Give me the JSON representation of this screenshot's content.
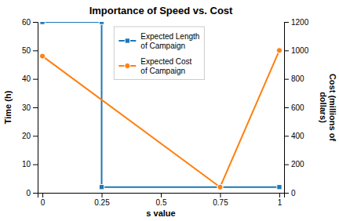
{
  "chart_data": {
    "type": "line",
    "title": "Importance of Speed vs. Cost",
    "xlabel": "s value",
    "ylabel": "Time (h)",
    "y2label": "Cost (millions of\ndollars)",
    "xlim": [
      -0.02,
      1.02
    ],
    "xticks": [
      0,
      0.25,
      0.5,
      0.75,
      1
    ],
    "ylim": [
      0,
      60
    ],
    "yticks": [
      0,
      10,
      20,
      30,
      40,
      50,
      60
    ],
    "y2lim": [
      0,
      1200
    ],
    "y2ticks": [
      0,
      200,
      400,
      600,
      800,
      1000,
      1200
    ],
    "grid": false,
    "legend": "top",
    "series": [
      {
        "name": "Expected Length\nof Campaign",
        "x": [
          0,
          0.25,
          0.25,
          1.0
        ],
        "values": [
          60,
          60,
          2,
          2
        ],
        "marker": "square"
      },
      {
        "name": "Expected Cost\nof Campaign",
        "x": [
          0,
          0.75,
          0.75,
          1.0
        ],
        "values": [
          48,
          2,
          2,
          50
        ],
        "marker": "circle"
      }
    ]
  }
}
